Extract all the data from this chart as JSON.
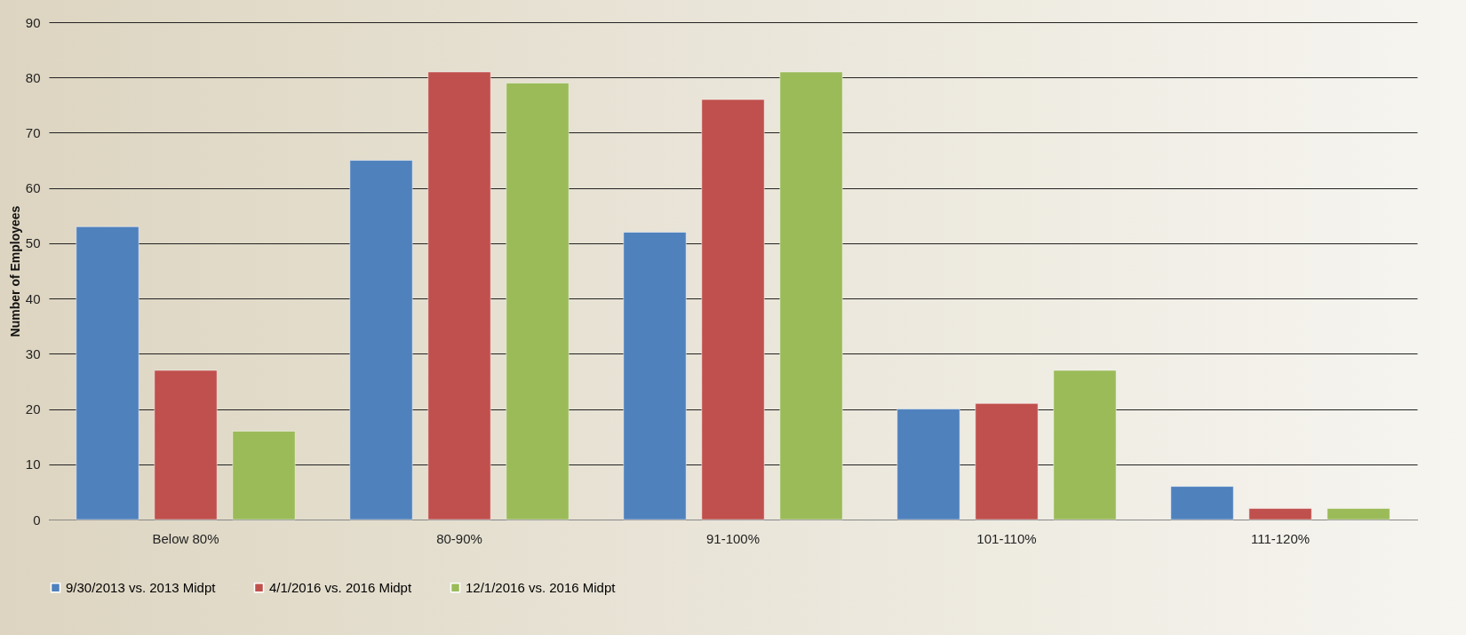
{
  "chart_data": {
    "type": "bar",
    "ylabel": "Number of Employees",
    "categories": [
      "Below 80%",
      "80-90%",
      "91-100%",
      "101-110%",
      "111-120%"
    ],
    "series": [
      {
        "name": "9/30/2013 vs. 2013 Midpt",
        "color": "#4f81bd",
        "values": [
          53,
          65,
          52,
          20,
          6
        ]
      },
      {
        "name": "4/1/2016 vs. 2016 Midpt",
        "color": "#c0504d",
        "values": [
          27,
          81,
          76,
          21,
          2
        ]
      },
      {
        "name": "12/1/2016 vs. 2016 Midpt",
        "color": "#9bbb59",
        "values": [
          16,
          79,
          81,
          27,
          2
        ]
      }
    ],
    "ylim": [
      0,
      90
    ],
    "yticks": [
      0,
      10,
      20,
      30,
      40,
      50,
      60,
      70,
      80,
      90
    ],
    "grid": "y",
    "legend": "bottom"
  }
}
